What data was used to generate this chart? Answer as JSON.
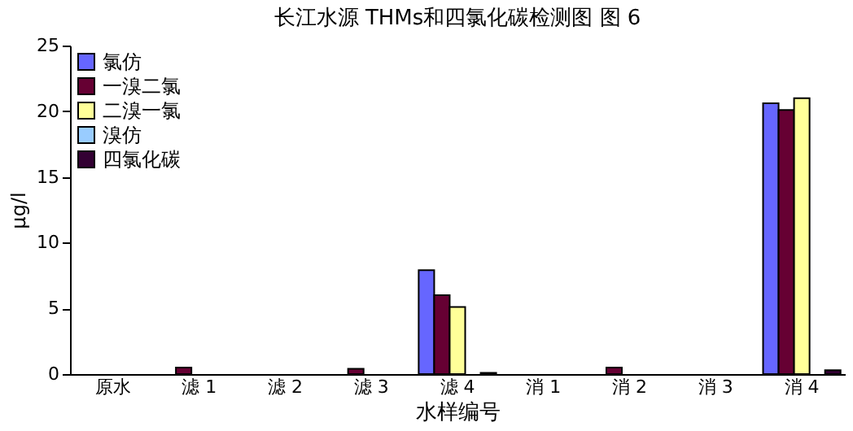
{
  "chart_data": {
    "type": "bar",
    "title": "长江水源 THMs和四氯化碳检测图        图 6",
    "xlabel": "水样编号",
    "ylabel": "μg/l",
    "categories": [
      "原水",
      "滤 1",
      "滤 2",
      "滤 3",
      "滤 4",
      "消 1",
      "消 2",
      "消 3",
      "消 4"
    ],
    "series": [
      {
        "name": "氯仿",
        "color": "#6666ff",
        "values": [
          null,
          null,
          null,
          null,
          7.9,
          null,
          null,
          null,
          20.6
        ]
      },
      {
        "name": "一溴二氯",
        "color": "#660033",
        "values": [
          null,
          0.5,
          null,
          0.4,
          6.0,
          null,
          0.5,
          null,
          20.1
        ]
      },
      {
        "name": "二溴一氯",
        "color": "#ffff99",
        "values": [
          null,
          null,
          null,
          null,
          5.1,
          null,
          null,
          null,
          21.0
        ]
      },
      {
        "name": "溴仿",
        "color": "#99ccff",
        "values": [
          null,
          null,
          null,
          null,
          null,
          null,
          null,
          null,
          null
        ]
      },
      {
        "name": "四氯化碳",
        "color": "#330033",
        "values": [
          null,
          null,
          null,
          null,
          0.1,
          null,
          null,
          null,
          0.3
        ]
      }
    ],
    "ylim": [
      0,
      25
    ],
    "yticks": [
      0,
      5,
      10,
      15,
      20,
      25
    ],
    "grid": false,
    "legend": "top left"
  }
}
